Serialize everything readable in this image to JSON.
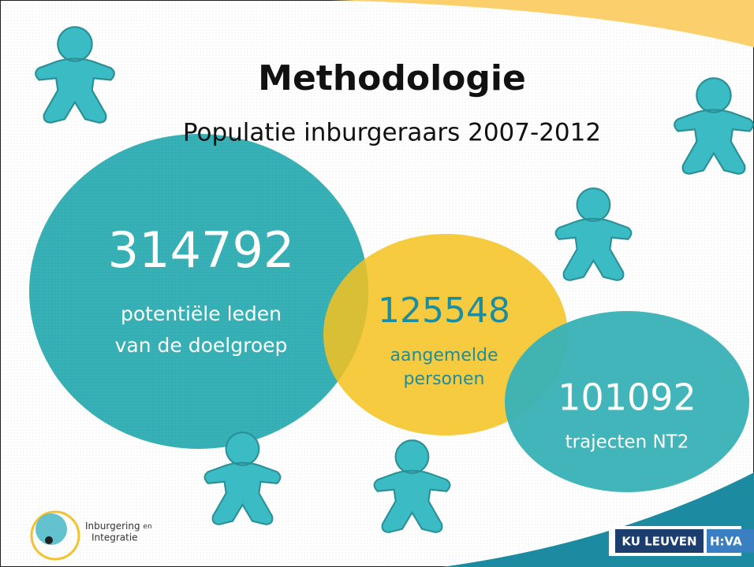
{
  "slide": {
    "title": "Methodologie",
    "subtitle": "Populatie inburgeraars 2007-2012",
    "groups": [
      {
        "number": 314792,
        "lines": [
          "potentiële leden",
          "van de doelgroep"
        ]
      },
      {
        "number": 125548,
        "lines": [
          "aangemelde",
          "personen"
        ]
      },
      {
        "number": 101092,
        "lines": [
          "trajecten NT2"
        ]
      }
    ],
    "logos": {
      "left": [
        "Inburgering",
        "en",
        "Integratie"
      ],
      "ku": "KU LEUVEN",
      "hiva": "H:VA"
    }
  }
}
